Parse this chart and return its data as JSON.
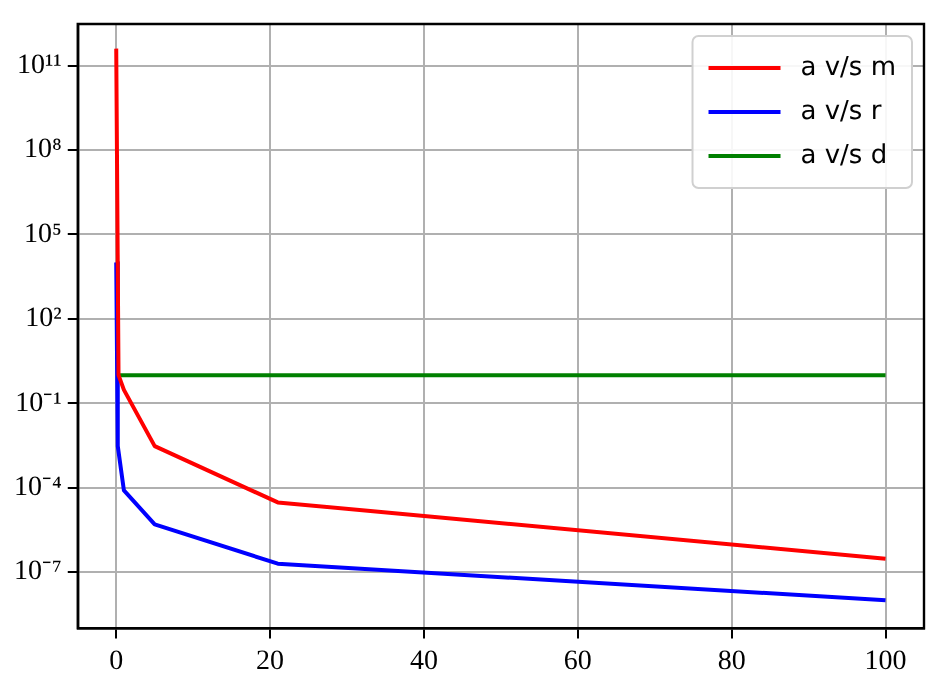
{
  "chart_data": {
    "type": "line",
    "log": "y",
    "grid": true,
    "legend": "top right",
    "line_style": "solid",
    "marker": "none",
    "xlim": [
      -5,
      105
    ],
    "xticks": [
      0,
      20,
      40,
      60,
      80,
      100
    ],
    "ylim": [
      1e-09,
      3000000000000.0
    ],
    "yticks": [
      {
        "value": 1e-07,
        "label": "10⁻⁷"
      },
      {
        "value": 0.0001,
        "label": "10⁻⁴"
      },
      {
        "value": 0.1,
        "label": "10⁻¹"
      },
      {
        "value": 100,
        "label": "10²"
      },
      {
        "value": 100000,
        "label": "10⁵"
      },
      {
        "value": 100000000.0,
        "label": "10⁸"
      },
      {
        "value": 100000000000.0,
        "label": "10¹¹"
      }
    ],
    "series": [
      {
        "name": "a v/s m",
        "color": "#ff0000",
        "x": [
          0,
          0.3,
          1,
          5,
          21,
          100
        ],
        "values": [
          400000000000.0,
          1,
          0.3,
          0.003,
          3e-05,
          3e-07
        ]
      },
      {
        "name": "a v/s r",
        "color": "#0000ff",
        "x": [
          0,
          0.2,
          1,
          5,
          21,
          100
        ],
        "values": [
          10000,
          0.003,
          8e-05,
          5e-06,
          2e-07,
          1e-08
        ]
      },
      {
        "name": "a v/s d",
        "color": "#008000",
        "x": [
          0,
          100
        ],
        "values": [
          1,
          1
        ]
      }
    ]
  }
}
